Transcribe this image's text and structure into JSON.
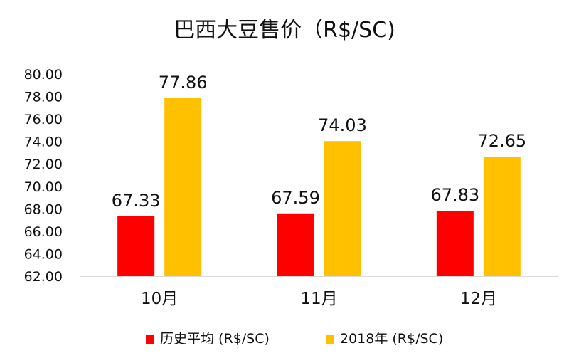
{
  "chart_data": {
    "type": "bar",
    "title": "巴西大豆售价（R$/SC)",
    "xlabel": "",
    "ylabel": "",
    "categories": [
      "10月",
      "11月",
      "12月"
    ],
    "ylim": [
      62,
      80
    ],
    "yticks": [
      "62.00",
      "64.00",
      "66.00",
      "68.00",
      "70.00",
      "72.00",
      "74.00",
      "76.00",
      "78.00",
      "80.00"
    ],
    "series": [
      {
        "name": "历史平均 (R$/SC)",
        "color": "#ff0000",
        "values": [
          67.33,
          67.59,
          67.83
        ],
        "labels": [
          "67.33",
          "67.59",
          "67.83"
        ]
      },
      {
        "name": "2018年 (R$/SC)",
        "color": "#ffc000",
        "values": [
          77.86,
          74.03,
          72.65
        ],
        "labels": [
          "77.86",
          "74.03",
          "72.65"
        ]
      }
    ],
    "grid": false,
    "legend": "bottom"
  }
}
